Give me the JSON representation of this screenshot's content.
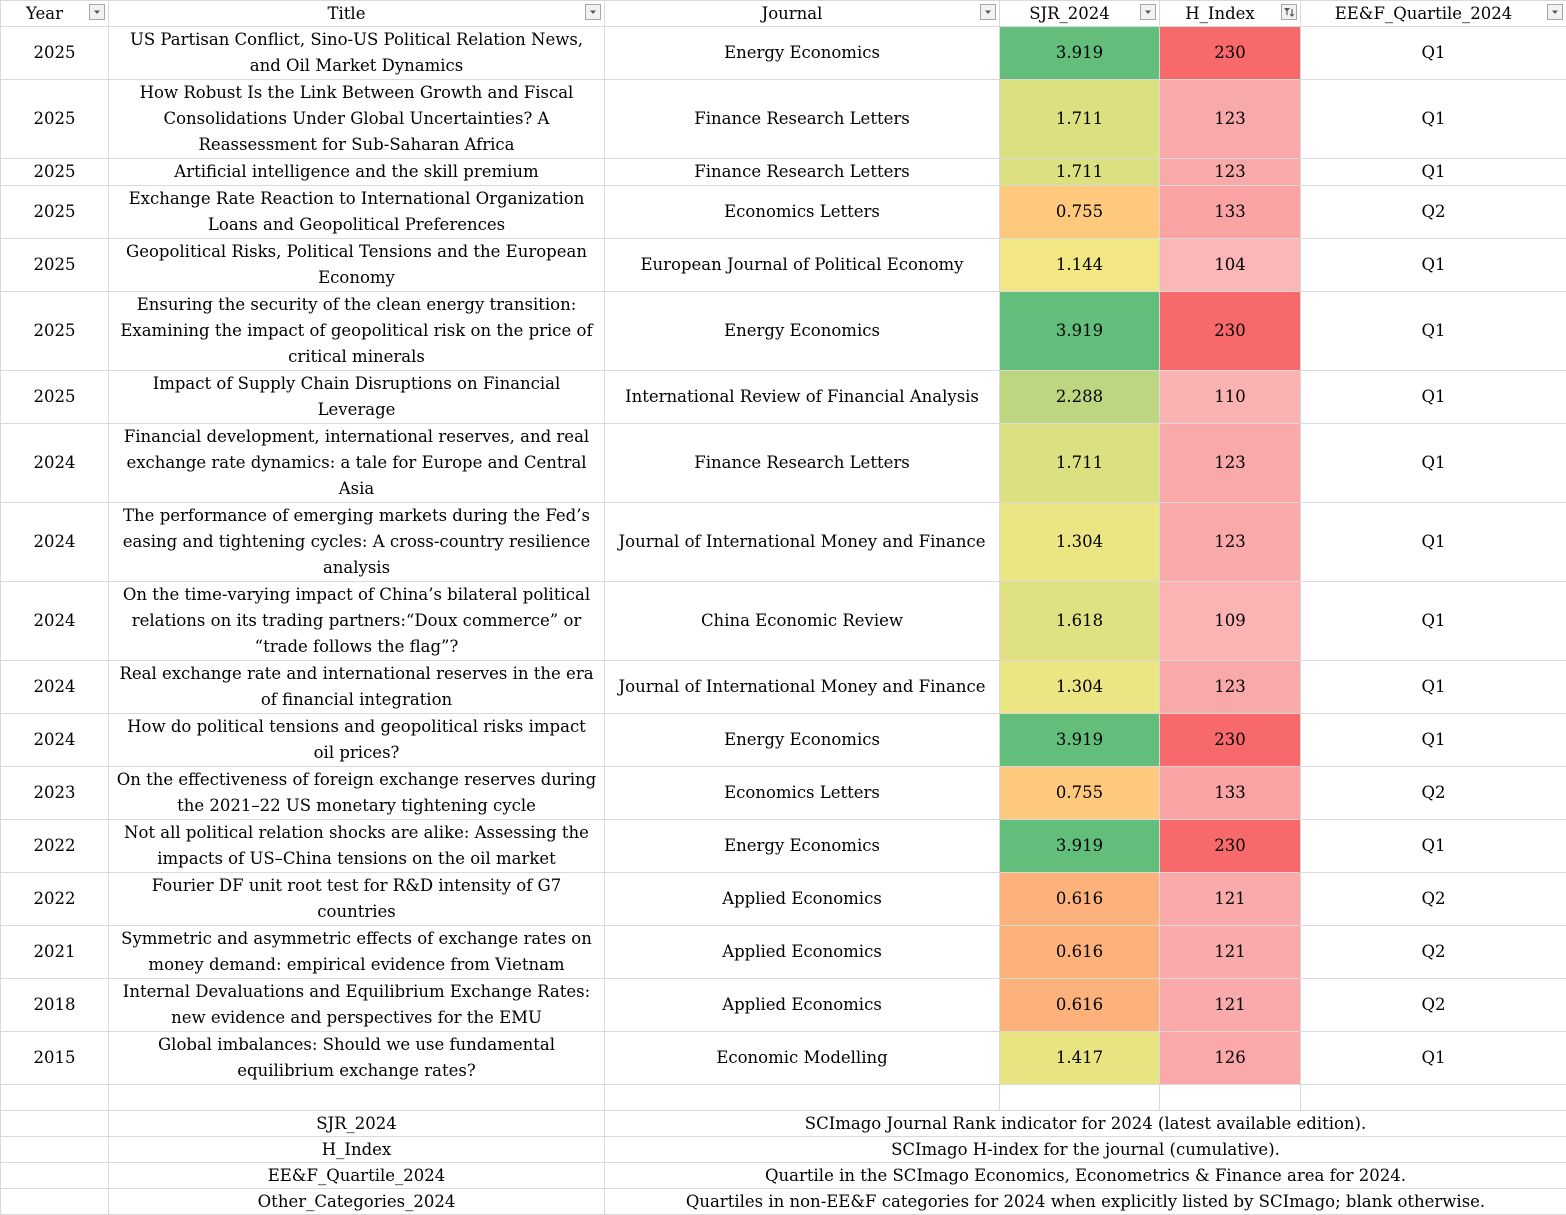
{
  "headers": [
    {
      "label": "Year",
      "filtered": false
    },
    {
      "label": "Title",
      "filtered": false
    },
    {
      "label": "Journal",
      "filtered": false
    },
    {
      "label": "SJR_2024",
      "filtered": false
    },
    {
      "label": "H_Index",
      "filtered": true
    },
    {
      "label": "EE&F_Quartile_2024",
      "filtered": false
    }
  ],
  "rows": [
    {
      "year": "2025",
      "title": "US Partisan Conflict, Sino-US Political Relation News, and Oil Market Dynamics",
      "journal": "Energy Economics",
      "sjr": "3.919",
      "sjr_color": "#63be7b",
      "h": "230",
      "h_color": "#f8696b",
      "q": "Q1"
    },
    {
      "year": "2025",
      "title": "How Robust Is the Link Between Growth and Fiscal Consolidations Under Global Uncertainties? A Reassessment for Sub-Saharan Africa",
      "journal": "Finance Research Letters",
      "sjr": "1.711",
      "sjr_color": "#dce081",
      "h": "123",
      "h_color": "#faa9aa",
      "q": "Q1"
    },
    {
      "year": "2025",
      "title": "Artificial intelligence and the skill premium",
      "journal": "Finance Research Letters",
      "sjr": "1.711",
      "sjr_color": "#dce081",
      "h": "123",
      "h_color": "#faa9aa",
      "q": "Q1"
    },
    {
      "year": "2025",
      "title": "Exchange Rate Reaction to International Organization Loans and Geopolitical Preferences",
      "journal": "Economics Letters",
      "sjr": "0.755",
      "sjr_color": "#fec97c",
      "h": "133",
      "h_color": "#faa3a4",
      "q": "Q2"
    },
    {
      "year": "2025",
      "title": "Geopolitical Risks, Political Tensions and the European Economy",
      "journal": "European Journal of Political Economy",
      "sjr": "1.144",
      "sjr_color": "#f2e783",
      "h": "104",
      "h_color": "#fbb6b7",
      "q": "Q1"
    },
    {
      "year": "2025",
      "title": "Ensuring the security of the clean energy transition: Examining the impact of geopolitical risk on the price of critical minerals",
      "journal": "Energy Economics",
      "sjr": "3.919",
      "sjr_color": "#63be7b",
      "h": "230",
      "h_color": "#f8696b",
      "q": "Q1"
    },
    {
      "year": "2025",
      "title": "Impact of Supply Chain Disruptions on Financial Leverage",
      "journal": "International Review of Financial Analysis",
      "sjr": "2.288",
      "sjr_color": "#bcd780",
      "h": "110",
      "h_color": "#fbb2b3",
      "q": "Q1"
    },
    {
      "year": "2024",
      "title": "Financial development, international reserves, and real exchange rate dynamics: a tale for Europe and Central Asia",
      "journal": "Finance Research Letters",
      "sjr": "1.711",
      "sjr_color": "#dce081",
      "h": "123",
      "h_color": "#faa9aa",
      "q": "Q1"
    },
    {
      "year": "2024",
      "title": "The performance of emerging markets during the Fed’s easing and tightening cycles: A cross-country resilience analysis",
      "journal": "Journal of International Money and Finance",
      "sjr": "1.304",
      "sjr_color": "#ebe583",
      "h": "123",
      "h_color": "#faa9aa",
      "q": "Q1"
    },
    {
      "year": "2024",
      "title": "On the time-varying impact of China’s bilateral political relations on its trading partners:“Doux commerce” or “trade follows the flag”?",
      "journal": "China Economic Review",
      "sjr": "1.618",
      "sjr_color": "#e0e182",
      "h": "109",
      "h_color": "#fbb3b4",
      "q": "Q1"
    },
    {
      "year": "2024",
      "title": "Real exchange rate and international reserves in the era of financial integration",
      "journal": "Journal of International Money and Finance",
      "sjr": "1.304",
      "sjr_color": "#ebe583",
      "h": "123",
      "h_color": "#faa9aa",
      "q": "Q1"
    },
    {
      "year": "2024",
      "title": "How do political tensions and geopolitical risks impact oil prices?",
      "journal": "Energy Economics",
      "sjr": "3.919",
      "sjr_color": "#63be7b",
      "h": "230",
      "h_color": "#f8696b",
      "q": "Q1"
    },
    {
      "year": "2023",
      "title": "On the effectiveness of foreign exchange reserves during the 2021–22 US monetary tightening cycle",
      "journal": "Economics Letters",
      "sjr": "0.755",
      "sjr_color": "#fec97c",
      "h": "133",
      "h_color": "#faa3a4",
      "q": "Q2"
    },
    {
      "year": "2022",
      "title": "Not all political relation shocks are alike: Assessing the impacts of US–China tensions on the oil market",
      "journal": "Energy Economics",
      "sjr": "3.919",
      "sjr_color": "#63be7b",
      "h": "230",
      "h_color": "#f8696b",
      "q": "Q1"
    },
    {
      "year": "2022",
      "title": "Fourier DF unit root test for R&D intensity of G7 countries",
      "journal": "Applied Economics",
      "sjr": "0.616",
      "sjr_color": "#fdb27b",
      "h": "121",
      "h_color": "#faaaab",
      "q": "Q2"
    },
    {
      "year": "2021",
      "title": "Symmetric and asymmetric effects of exchange rates on money demand: empirical evidence from Vietnam",
      "journal": "Applied Economics",
      "sjr": "0.616",
      "sjr_color": "#fdb27b",
      "h": "121",
      "h_color": "#faaaab",
      "q": "Q2"
    },
    {
      "year": "2018",
      "title": "Internal Devaluations and Equilibrium Exchange Rates: new evidence and perspectives for the EMU",
      "journal": "Applied Economics",
      "sjr": "0.616",
      "sjr_color": "#fdb27b",
      "h": "121",
      "h_color": "#faaaab",
      "q": "Q2"
    },
    {
      "year": "2015",
      "title": "Global imbalances: Should we use fundamental equilibrium exchange rates?",
      "journal": "Economic Modelling",
      "sjr": "1.417",
      "sjr_color": "#e8e482",
      "h": "126",
      "h_color": "#faa8a9",
      "q": "Q1"
    }
  ],
  "legend": [
    {
      "term": "SJR_2024",
      "desc": "SCImago Journal Rank indicator for 2024 (latest available edition)."
    },
    {
      "term": "H_Index",
      "desc": "SCImago H-index for the journal (cumulative)."
    },
    {
      "term": "EE&F_Quartile_2024",
      "desc": "Quartile in the SCImago Economics, Econometrics & Finance area for 2024."
    },
    {
      "term": "Other_Categories_2024",
      "desc": "Quartiles in non-EE&F categories for 2024 when explicitly listed by SCImago; blank otherwise."
    }
  ]
}
